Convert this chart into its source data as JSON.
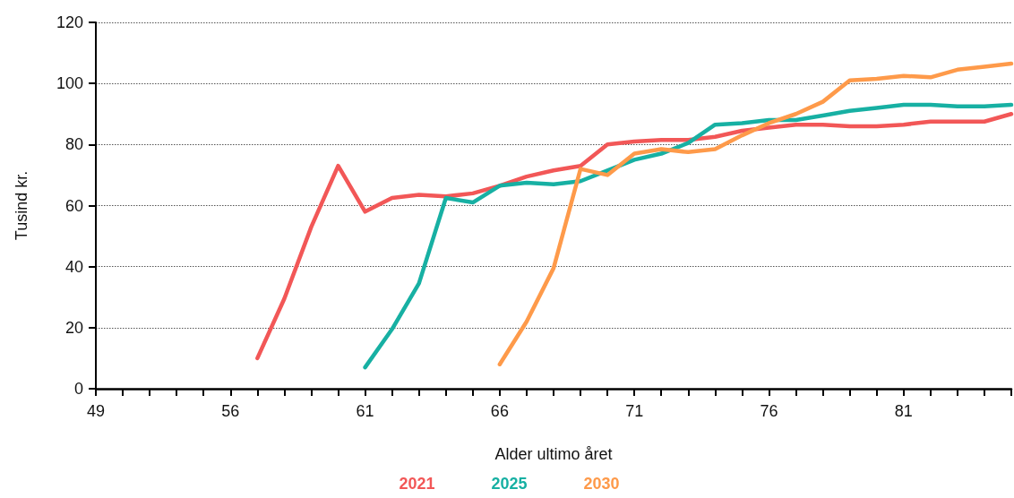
{
  "chart_data": {
    "type": "line",
    "xlabel": "Alder ultimo året",
    "ylabel": "Tusind kr.",
    "categories": [
      "49",
      null,
      null,
      null,
      null,
      "56",
      null,
      null,
      null,
      null,
      "61",
      null,
      null,
      null,
      null,
      "66",
      null,
      null,
      null,
      null,
      "71",
      null,
      null,
      null,
      null,
      "76",
      null,
      null,
      null,
      null,
      "81",
      null,
      null,
      null,
      null
    ],
    "series": [
      {
        "name": "2021",
        "color": "#f25757",
        "values": [
          null,
          null,
          null,
          null,
          null,
          null,
          10,
          29.5,
          53,
          73,
          58,
          62.5,
          63.5,
          63,
          64,
          66.5,
          69.5,
          71.5,
          73,
          80,
          81,
          81.5,
          81.5,
          82.5,
          84.5,
          85.5,
          86.5,
          86.5,
          86,
          86,
          86.5,
          87.5,
          87.5,
          87.5,
          90
        ]
      },
      {
        "name": "2025",
        "color": "#17b0a3",
        "values": [
          null,
          null,
          null,
          null,
          null,
          null,
          null,
          null,
          null,
          null,
          7,
          19.5,
          34.5,
          62.5,
          61,
          66.5,
          67.5,
          67,
          68,
          71.5,
          75,
          77,
          80.5,
          86.5,
          87,
          88,
          88,
          89.5,
          91,
          92,
          93,
          93,
          92.5,
          92.5,
          93
        ]
      },
      {
        "name": "2030",
        "color": "#fe9a4a",
        "values": [
          null,
          null,
          null,
          null,
          null,
          null,
          null,
          null,
          null,
          null,
          null,
          null,
          null,
          null,
          null,
          8,
          22,
          39.5,
          72,
          70,
          77,
          78.5,
          77.5,
          78.5,
          83,
          87,
          90,
          94,
          101,
          101.5,
          102.5,
          102,
          104.5,
          105.5,
          106.5
        ]
      }
    ],
    "ylim": [
      0,
      120
    ],
    "yticks": [
      0,
      20,
      40,
      60,
      80,
      100,
      120
    ],
    "grid": "y",
    "legend": "bottom",
    "marker": "none",
    "line_style": "solid"
  }
}
